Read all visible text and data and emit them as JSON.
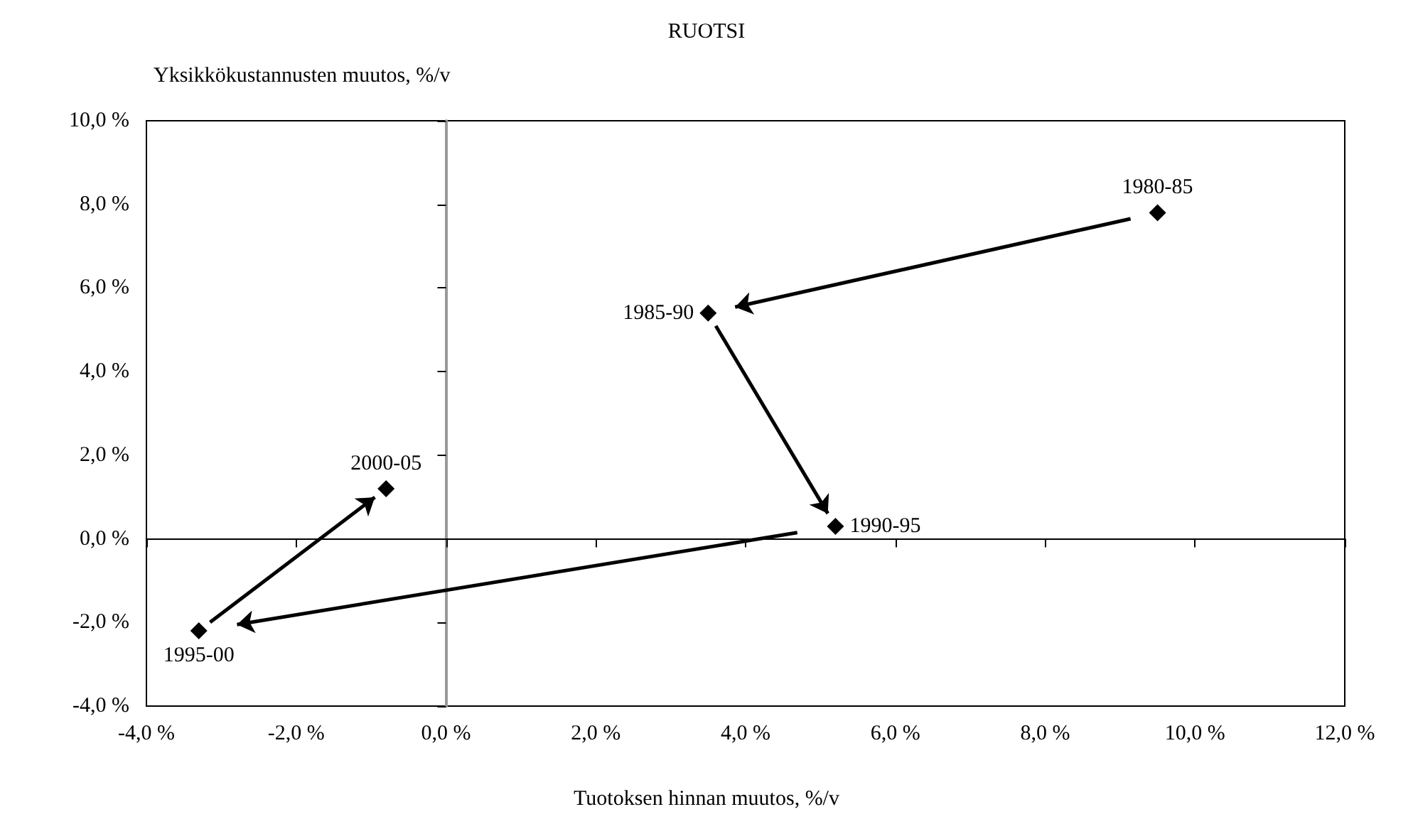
{
  "chart_data": {
    "type": "scatter",
    "title": "RUOTSI",
    "xlabel": "Tuotoksen hinnan muutos, %/v",
    "ylabel": "Yksikkökustannusten muutos, %/v",
    "x": [
      9.5,
      3.5,
      5.2,
      -3.3,
      -0.8
    ],
    "series": [
      {
        "color": "#000000",
        "values": [
          7.8,
          5.4,
          0.3,
          -2.2,
          1.2
        ]
      }
    ],
    "annotations": [
      {
        "text": "1980-85",
        "x": 9.5,
        "y": 7.8
      },
      {
        "text": "1985-90",
        "x": 3.5,
        "y": 5.4
      },
      {
        "text": "1990-95",
        "x": 5.2,
        "y": 0.3
      },
      {
        "text": "1995-00",
        "x": -3.3,
        "y": -2.2
      },
      {
        "text": "2000-05",
        "x": -0.8,
        "y": 1.2
      }
    ],
    "marker": "diamond",
    "grid": false,
    "xlim": [
      -4,
      12
    ],
    "xticks": [
      {
        "value": -4,
        "label": "-4,0 %"
      },
      {
        "value": -2,
        "label": "-2,0 %"
      },
      {
        "value": 0,
        "label": "0,0 %"
      },
      {
        "value": 2,
        "label": "2,0 %"
      },
      {
        "value": 4,
        "label": "4,0 %"
      },
      {
        "value": 6,
        "label": "6,0 %"
      },
      {
        "value": 8,
        "label": "8,0 %"
      },
      {
        "value": 10,
        "label": "10,0 %"
      },
      {
        "value": 12,
        "label": "12,0 %"
      }
    ],
    "ylim": [
      -4,
      10
    ],
    "yticks": [
      {
        "value": -4,
        "label": "-4,0 %"
      },
      {
        "value": -2,
        "label": "-2,0 %"
      },
      {
        "value": 0,
        "label": "0,0 %"
      },
      {
        "value": 2,
        "label": "2,0 %"
      },
      {
        "value": 4,
        "label": "4,0 %"
      },
      {
        "value": 6,
        "label": "6,0 %"
      },
      {
        "value": 8,
        "label": "8,0 %"
      },
      {
        "value": 10,
        "label": "10,0 %"
      }
    ]
  }
}
